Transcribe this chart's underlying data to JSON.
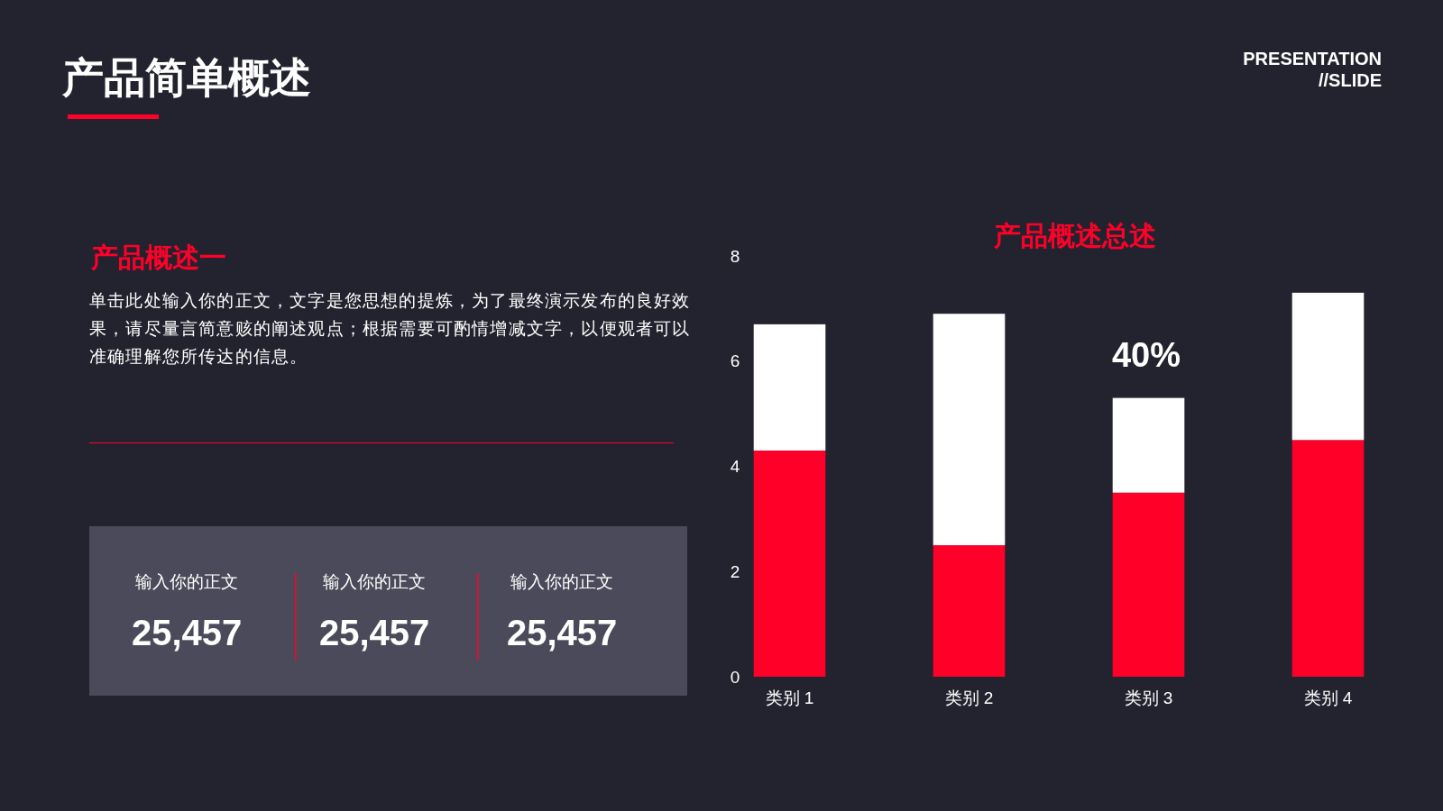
{
  "chart_data": {
    "type": "bar",
    "stacked": true,
    "title": "产品概述总述",
    "categories": [
      "类别 1",
      "类别 2",
      "类别 3",
      "类别 4"
    ],
    "series": [
      {
        "color": "#ff0029",
        "values": [
          4.3,
          2.5,
          3.5,
          4.5
        ]
      },
      {
        "color": "#ffffff",
        "values": [
          2.4,
          4.4,
          1.8,
          2.8
        ]
      }
    ],
    "ylim": [
      0,
      8
    ],
    "yticks": [
      0,
      2,
      4,
      6,
      8
    ],
    "grid": false,
    "annotations": [
      "产品简单概述",
      "PRESENTATION",
      "//SLIDE",
      "产品概述一",
      "单击此处输入你的正文，文字是您思想的提炼，为了最终演示发布的良好效果，请尽量言简意赅的阐述观点；根据需要可酌情增减文字，以便观者可以准确理解您所传达的信息。",
      "输入你的正文",
      "25,457",
      "输入你的正文",
      "25,457",
      "输入你的正文",
      "25,457",
      "40%"
    ]
  }
}
